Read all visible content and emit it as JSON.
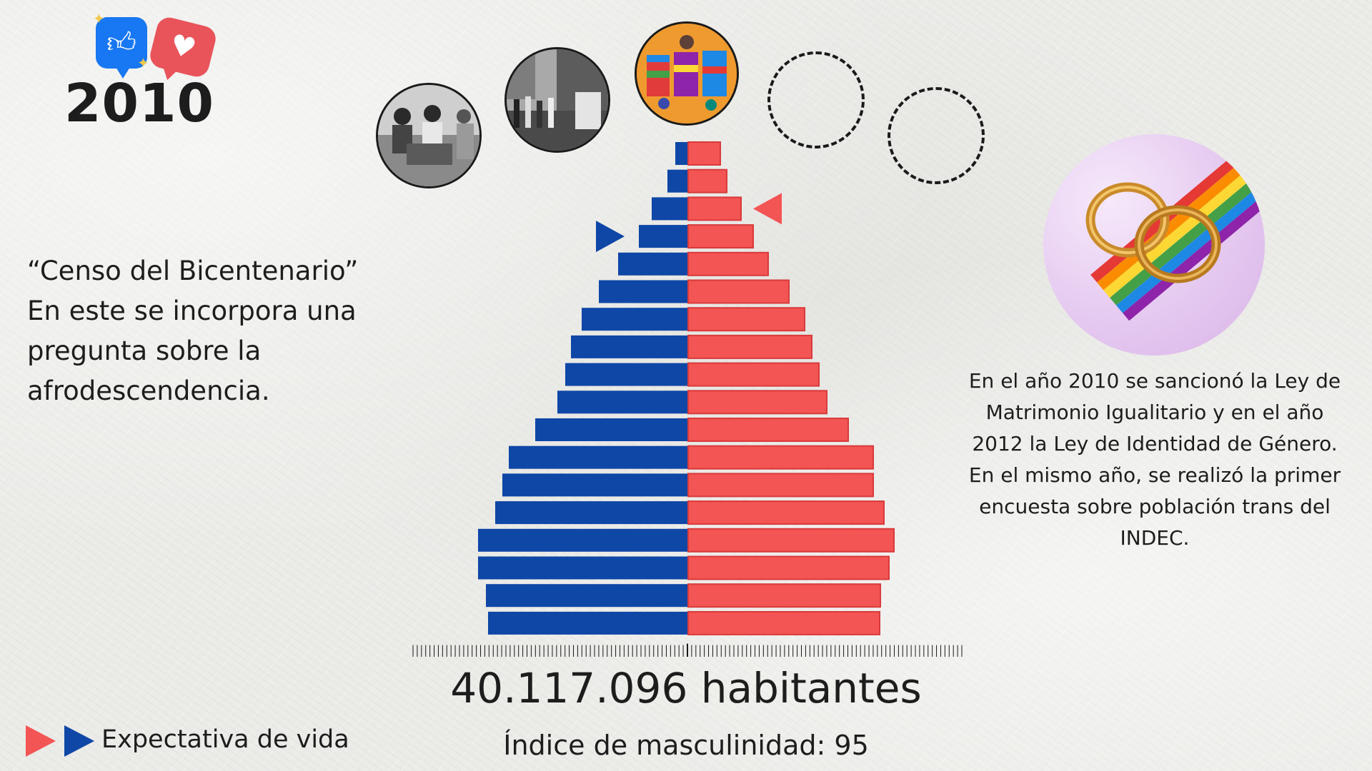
{
  "header": {
    "year": "2010"
  },
  "left_note": {
    "lines": [
      "“Censo del Bicentenario”",
      "En este se incorpora una",
      "pregunta sobre la",
      "afrodescendencia."
    ]
  },
  "right_note": {
    "lines": [
      "En el año 2010  se sancionó la Ley de",
      "Matrimonio Igualitario y en el año",
      "2012 la Ley de Identidad de Género.",
      "En el mismo año, se realizó la primer",
      "encuesta sobre población trans del",
      "INDEC."
    ]
  },
  "legend": {
    "label": "Expectativa de vida"
  },
  "stats": {
    "population": "40.117.096 habitantes",
    "masculinity": "Índice de masculinidad: 95"
  },
  "colors": {
    "male": "#0e47a6",
    "female": "#f35454",
    "outline": "#d93a3a"
  },
  "icons": {
    "like": "thumbs-up-icon",
    "heart": "heart-icon",
    "legend_female": "triangle-right-icon",
    "legend_male": "triangle-right-icon"
  },
  "chart_data": {
    "type": "bar",
    "orientation": "horizontal-pyramid",
    "title": "",
    "xlabel": "",
    "ylabel": "",
    "categories": [
      "top-1",
      "top-2",
      "top-3",
      "top-4",
      "top-5",
      "top-6",
      "top-7",
      "top-8",
      "top-9",
      "top-10",
      "top-11",
      "top-12",
      "top-13",
      "top-14",
      "top-15",
      "top-16",
      "top-17",
      "top-18"
    ],
    "series": [
      {
        "name": "",
        "side": "left",
        "values": [
          17,
          28,
          50,
          68,
          97,
          124,
          148,
          163,
          171,
          182,
          213,
          250,
          259,
          269,
          293,
          293,
          282,
          279
        ]
      },
      {
        "name": "",
        "side": "right",
        "values": [
          45,
          54,
          74,
          91,
          112,
          141,
          163,
          173,
          183,
          194,
          224,
          259,
          259,
          274,
          288,
          281,
          269,
          268
        ]
      }
    ],
    "life_expectancy_markers": [
      {
        "side": "female",
        "row": 3
      },
      {
        "side": "male",
        "row": 4
      }
    ],
    "axis_ticks": 130,
    "grid": false,
    "legend_placement": "bottom-left"
  }
}
